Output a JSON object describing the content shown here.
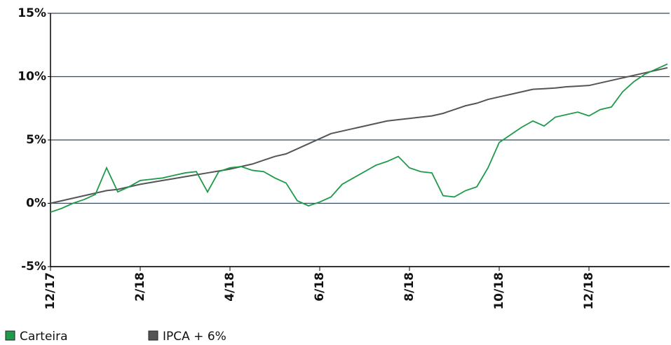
{
  "chart_data": {
    "type": "line",
    "categories": [
      "12/17",
      null,
      null,
      null,
      null,
      null,
      null,
      null,
      "2/18",
      null,
      null,
      null,
      null,
      null,
      null,
      null,
      "4/18",
      null,
      null,
      null,
      null,
      null,
      null,
      null,
      "6/18",
      null,
      null,
      null,
      null,
      null,
      null,
      null,
      "8/18",
      null,
      null,
      null,
      null,
      null,
      null,
      null,
      "10/18",
      null,
      null,
      null,
      null,
      null,
      null,
      null,
      "12/18",
      null,
      null,
      null,
      null,
      null,
      null,
      null
    ],
    "series": [
      {
        "name": "Carteira",
        "color": "#1e9a4a",
        "values": [
          -0.7,
          -0.4,
          0.0,
          0.3,
          0.7,
          2.8,
          0.9,
          1.3,
          1.8,
          1.9,
          2.0,
          2.2,
          2.4,
          2.5,
          0.9,
          2.5,
          2.8,
          2.9,
          2.6,
          2.5,
          2.0,
          1.6,
          0.2,
          -0.2,
          0.1,
          0.5,
          1.5,
          2.0,
          2.5,
          3.0,
          3.3,
          3.7,
          2.8,
          2.5,
          2.4,
          0.6,
          0.5,
          1.0,
          1.3,
          2.8,
          4.8,
          5.4,
          6.0,
          6.5,
          6.1,
          6.8,
          7.0,
          7.2,
          6.9,
          7.4,
          7.6,
          8.8,
          9.6,
          10.2,
          10.6,
          11.0
        ]
      },
      {
        "name": "IPCA + 6%",
        "color": "#555555",
        "values": [
          0.0,
          0.2,
          0.4,
          0.6,
          0.8,
          1.0,
          1.1,
          1.3,
          1.5,
          1.65,
          1.8,
          1.95,
          2.1,
          2.25,
          2.4,
          2.55,
          2.7,
          2.9,
          3.1,
          3.4,
          3.7,
          3.9,
          4.3,
          4.7,
          5.1,
          5.5,
          5.7,
          5.9,
          6.1,
          6.3,
          6.5,
          6.6,
          6.7,
          6.8,
          6.9,
          7.1,
          7.4,
          7.7,
          7.9,
          8.2,
          8.4,
          8.6,
          8.8,
          9.0,
          9.05,
          9.1,
          9.2,
          9.25,
          9.3,
          9.5,
          9.7,
          9.9,
          10.1,
          10.3,
          10.5,
          10.7
        ]
      }
    ],
    "ylim": [
      -5,
      15
    ],
    "yticks": [
      {
        "value": -5,
        "label": "-5%"
      },
      {
        "value": 0,
        "label": "0%"
      },
      {
        "value": 5,
        "label": "5%"
      },
      {
        "value": 10,
        "label": "10%"
      },
      {
        "value": 15,
        "label": "15%"
      }
    ],
    "grid": true,
    "legend": "bottom-left"
  }
}
